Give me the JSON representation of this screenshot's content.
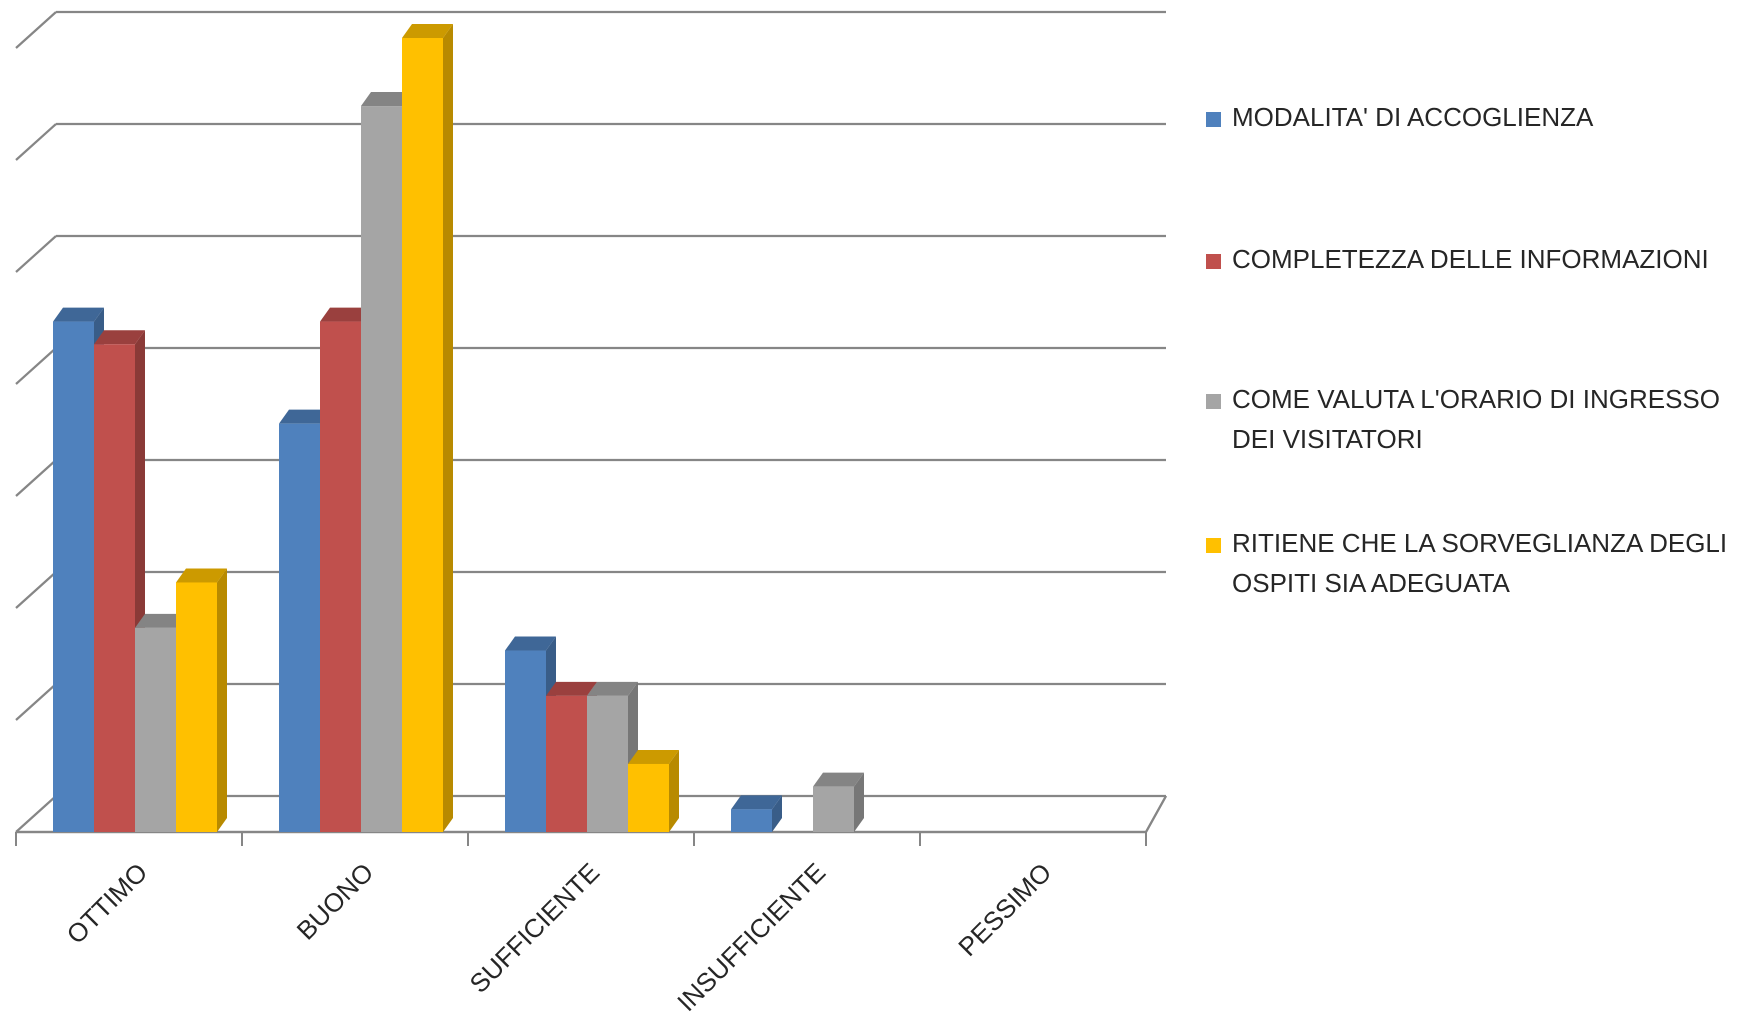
{
  "chart_data": {
    "type": "bar",
    "categories": [
      "OTTIMO",
      "BUONO",
      "SUFFICIENTE",
      "INSUFFICIENTE",
      "PESSIMO"
    ],
    "series": [
      {
        "name": "MODALITA' DI ACCOGLIENZA",
        "color": "#4F81BD",
        "values": [
          45,
          36,
          16,
          2,
          0
        ]
      },
      {
        "name": "COMPLETEZZA DELLE INFORMAZIONI",
        "color": "#C0504D",
        "values": [
          43,
          45,
          12,
          0,
          0
        ]
      },
      {
        "name": "COME VALUTA L'ORARIO DI INGRESSO DEI VISITATORI",
        "color": "#A5A5A5",
        "values": [
          18,
          64,
          12,
          4,
          0
        ]
      },
      {
        "name": "RITIENE CHE LA SORVEGLIANZA DEGLI OSPITI SIA ADEGUATA",
        "color": "#FFC000",
        "values": [
          22,
          70,
          6,
          0,
          0
        ]
      }
    ],
    "ylim": [
      0,
      70
    ],
    "grid": true,
    "legend": "right",
    "title": "",
    "xlabel": "",
    "ylabel": ""
  }
}
